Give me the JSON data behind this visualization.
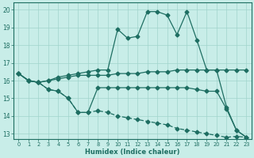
{
  "xlabel": "Humidex (Indice chaleur)",
  "bg_color": "#c8ede8",
  "grid_color": "#a0d4cc",
  "line_color": "#1e6e62",
  "xlim": [
    -0.5,
    23.5
  ],
  "ylim": [
    12.7,
    20.4
  ],
  "xticks": [
    0,
    1,
    2,
    3,
    4,
    5,
    6,
    7,
    8,
    9,
    10,
    11,
    12,
    13,
    14,
    15,
    16,
    17,
    18,
    19,
    20,
    21,
    22,
    23
  ],
  "yticks": [
    13,
    14,
    15,
    16,
    17,
    18,
    19,
    20
  ],
  "line_peak": {
    "x": [
      0,
      1,
      2,
      3,
      4,
      5,
      6,
      7,
      8,
      9,
      10,
      11,
      12,
      13,
      14,
      15,
      16,
      17,
      18,
      19,
      20,
      21,
      22,
      23
    ],
    "y": [
      16.4,
      16.0,
      15.9,
      16.0,
      16.2,
      16.3,
      16.4,
      16.5,
      16.6,
      16.6,
      18.9,
      18.4,
      18.5,
      19.9,
      19.9,
      19.7,
      18.6,
      19.9,
      18.3,
      16.6,
      16.6,
      14.5,
      13.2,
      12.8
    ]
  },
  "line_flat_high": {
    "x": [
      0,
      1,
      2,
      3,
      4,
      5,
      6,
      7,
      8,
      9,
      10,
      11,
      12,
      13,
      14,
      15,
      16,
      17,
      18,
      19,
      20,
      21,
      22,
      23
    ],
    "y": [
      16.4,
      16.0,
      15.9,
      16.0,
      16.1,
      16.2,
      16.3,
      16.3,
      16.3,
      16.3,
      16.4,
      16.4,
      16.4,
      16.5,
      16.5,
      16.5,
      16.6,
      16.6,
      16.6,
      16.6,
      16.6,
      16.6,
      16.6,
      16.6
    ]
  },
  "line_mid": {
    "x": [
      0,
      1,
      2,
      3,
      4,
      5,
      6,
      7,
      8,
      9,
      10,
      11,
      12,
      13,
      14,
      15,
      16,
      17,
      18,
      19,
      20,
      21,
      22,
      23
    ],
    "y": [
      16.4,
      16.0,
      15.9,
      15.5,
      15.4,
      15.0,
      14.2,
      14.2,
      15.6,
      15.6,
      15.6,
      15.6,
      15.6,
      15.6,
      15.6,
      15.6,
      15.6,
      15.6,
      15.5,
      15.4,
      15.4,
      14.4,
      13.2,
      12.8
    ]
  },
  "line_decline": {
    "x": [
      0,
      1,
      2,
      3,
      4,
      5,
      6,
      7,
      8,
      9,
      10,
      11,
      12,
      13,
      14,
      15,
      16,
      17,
      18,
      19,
      20,
      21,
      22,
      23
    ],
    "y": [
      16.4,
      16.0,
      15.9,
      15.5,
      15.4,
      15.0,
      14.2,
      14.2,
      14.3,
      14.2,
      14.0,
      13.9,
      13.8,
      13.7,
      13.6,
      13.5,
      13.3,
      13.2,
      13.1,
      13.0,
      12.9,
      12.8,
      12.85,
      12.8
    ]
  }
}
